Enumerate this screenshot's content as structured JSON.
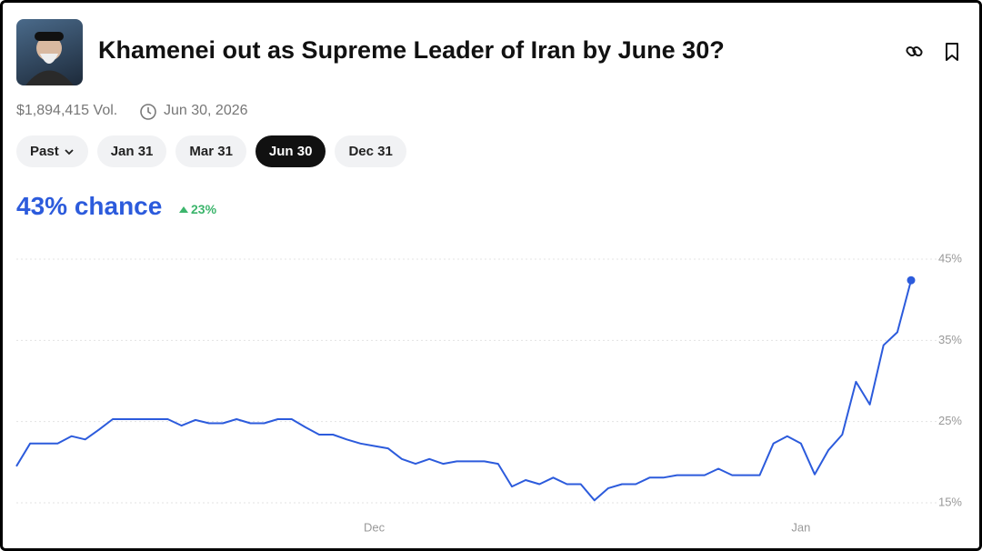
{
  "header": {
    "title": "Khamenei out as Supreme Leader of Iran by June 30?",
    "volume": "$1,894,415 Vol.",
    "end_date": "Jun 30, 2026"
  },
  "tabs": [
    "Past",
    "Jan 31",
    "Mar 31",
    "Jun 30",
    "Dec 31"
  ],
  "active_tab": 3,
  "chance": "43% chance",
  "change": "23%",
  "chart_data": {
    "type": "line",
    "categories": [
      null,
      null,
      null,
      null,
      null,
      null,
      null,
      null,
      null,
      null,
      null,
      null,
      null,
      null,
      null,
      null,
      null,
      null,
      null,
      null,
      null,
      null,
      null,
      null,
      null,
      null,
      "Dec",
      null,
      null,
      null,
      null,
      null,
      null,
      null,
      null,
      null,
      null,
      null,
      null,
      null,
      null,
      null,
      null,
      null,
      null,
      null,
      null,
      null,
      null,
      null,
      null,
      null,
      null,
      null,
      null,
      null,
      null,
      "Jan",
      null,
      null,
      null,
      null,
      null,
      null,
      null,
      null
    ],
    "series": [
      {
        "color": "#2c5bdc",
        "values": [
          19.5,
          22.3,
          22.3,
          22.3,
          23.2,
          22.8,
          24,
          25.3,
          25.3,
          25.3,
          25.3,
          25.3,
          24.5,
          25.2,
          24.8,
          24.8,
          25.3,
          24.8,
          24.8,
          25.3,
          25.3,
          24.3,
          23.4,
          23.4,
          22.8,
          22.3,
          22,
          21.7,
          20.4,
          19.8,
          20.4,
          19.8,
          20.1,
          20.1,
          20.1,
          19.8,
          17,
          17.8,
          17.3,
          18.1,
          17.3,
          17.3,
          15.3,
          16.8,
          17.3,
          17.3,
          18.1,
          18.1,
          18.4,
          18.4,
          18.4,
          19.2,
          18.4,
          18.4,
          18.4,
          22.3,
          23.2,
          22.3,
          18.5,
          21.5,
          23.4,
          29.9,
          27.1,
          34.4,
          36,
          42.4
        ]
      }
    ],
    "ylim": [
      15,
      45
    ],
    "yticks": [
      {
        "value": 15,
        "label": "15%"
      },
      {
        "value": 25,
        "label": "25%"
      },
      {
        "value": 35,
        "label": "35%"
      },
      {
        "value": 45,
        "label": "45%"
      }
    ],
    "grid": true
  }
}
